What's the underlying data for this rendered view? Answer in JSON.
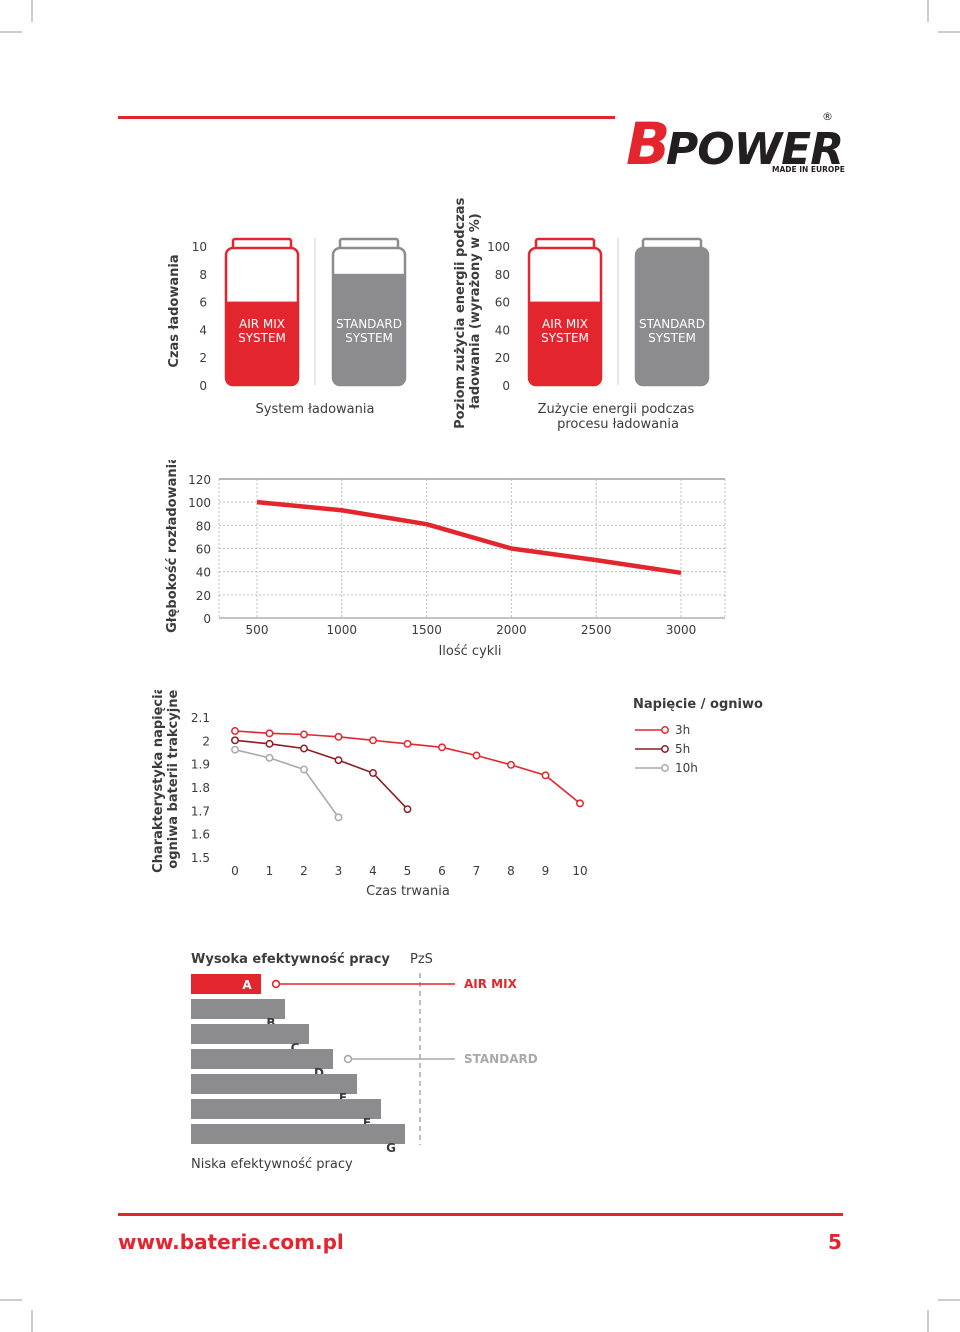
{
  "colors": {
    "red": "#e3262d",
    "dark_red": "#8e1b22",
    "gray": "#8c8c8e",
    "light_gray": "#a9a9ab",
    "text": "#3c3c3c"
  },
  "logo": {
    "brand_b": "B",
    "brand_rest": "POWER",
    "tagline": "MADE IN EUROPE",
    "registered": "®"
  },
  "footer": {
    "url": "www.baterie.com.pl",
    "page": "5"
  },
  "chart_data": [
    {
      "type": "bar",
      "ylabel": "Czas ładowania",
      "xlabel": "System ładowania",
      "yticks": [
        "0",
        "2",
        "4",
        "6",
        "8",
        "10"
      ],
      "ylim": [
        0,
        10
      ],
      "categories": [
        "AIR MIX SYSTEM",
        "STANDARD SYSTEM"
      ],
      "bar_labels": [
        [
          "AIR MIX",
          "SYSTEM"
        ],
        [
          "STANDARD",
          "SYSTEM"
        ]
      ],
      "values": [
        6,
        8
      ],
      "bar_colors": [
        "#e3262d",
        "#8c8c8e"
      ]
    },
    {
      "type": "bar",
      "ylabel_lines": [
        "Poziom zużycia energii podczas",
        "ładowania (wyrażony w %)"
      ],
      "xlabel_lines": [
        "Zużycie energii podczas",
        "procesu ładowania"
      ],
      "yticks": [
        "0",
        "20",
        "40",
        "60",
        "80",
        "100"
      ],
      "ylim": [
        0,
        100
      ],
      "categories": [
        "AIR MIX SYSTEM",
        "STANDARD SYSTEM"
      ],
      "bar_labels": [
        [
          "AIR MIX",
          "SYSTEM"
        ],
        [
          "STANDARD",
          "SYSTEM"
        ]
      ],
      "values": [
        60,
        100
      ],
      "bar_colors": [
        "#e3262d",
        "#8c8c8e"
      ]
    },
    {
      "type": "line",
      "ylabel": "Głębokość rozładowania",
      "xlabel": "Ilość cykli",
      "yticks": [
        "0",
        "20",
        "40",
        "60",
        "80",
        "100",
        "120"
      ],
      "xticks": [
        "500",
        "1000",
        "1500",
        "2000",
        "2500",
        "3000"
      ],
      "ylim": [
        0,
        120
      ],
      "xlim": [
        500,
        3000
      ],
      "grid": true,
      "series": [
        {
          "color": "#e3262d",
          "x": [
            500,
            1000,
            1500,
            2000,
            2500,
            3000
          ],
          "y": [
            100,
            93,
            81,
            60,
            50,
            39
          ]
        }
      ]
    },
    {
      "type": "line",
      "ylabel_lines": [
        "Charakterystyka napięcia",
        "ogniwa baterii trakcyjnej"
      ],
      "xlabel": "Czas trwania",
      "yticks": [
        "1.5",
        "1.6",
        "1.7",
        "1.8",
        "1.9",
        "2",
        "2.1"
      ],
      "xticks": [
        "0",
        "1",
        "2",
        "3",
        "4",
        "5",
        "6",
        "7",
        "8",
        "9",
        "10"
      ],
      "ylim": [
        1.5,
        2.1
      ],
      "xlim": [
        0,
        10
      ],
      "legend_title": "Napięcie / ogniwo",
      "legend_position": "top-right",
      "series": [
        {
          "name": "3h",
          "color": "#e3262d",
          "x": [
            0,
            1,
            2,
            3,
            4,
            5,
            6,
            7,
            8,
            9,
            10
          ],
          "y": [
            2.04,
            2.03,
            2.025,
            2.015,
            2.0,
            1.985,
            1.97,
            1.935,
            1.895,
            1.85,
            1.73
          ]
        },
        {
          "name": "5h",
          "color": "#8e1b22",
          "x": [
            0,
            1,
            2,
            3,
            4,
            5
          ],
          "y": [
            2.0,
            1.985,
            1.965,
            1.915,
            1.86,
            1.705
          ]
        },
        {
          "name": "10h",
          "color": "#a9a9ab",
          "x": [
            0,
            1,
            2,
            3
          ],
          "y": [
            1.96,
            1.925,
            1.875,
            1.67
          ]
        }
      ]
    },
    {
      "type": "bar",
      "title_top": "Wysoka efektywność pracy",
      "title_bottom": "Niska efektywność pracy",
      "reference_label": "PzS",
      "categories": [
        "A",
        "B",
        "C",
        "D",
        "E",
        "F",
        "G"
      ],
      "values": [
        1,
        2,
        3,
        4,
        5,
        6,
        7
      ],
      "bar_colors": [
        "#e3262d",
        "#8c8c8e",
        "#8c8c8e",
        "#8c8c8e",
        "#8c8c8e",
        "#8c8c8e",
        "#8c8c8e"
      ],
      "markers": [
        {
          "category": "A",
          "label": "AIR MIX",
          "color": "#e3262d"
        },
        {
          "category": "D",
          "label": "STANDARD",
          "color": "#a9a9ab"
        }
      ]
    }
  ]
}
